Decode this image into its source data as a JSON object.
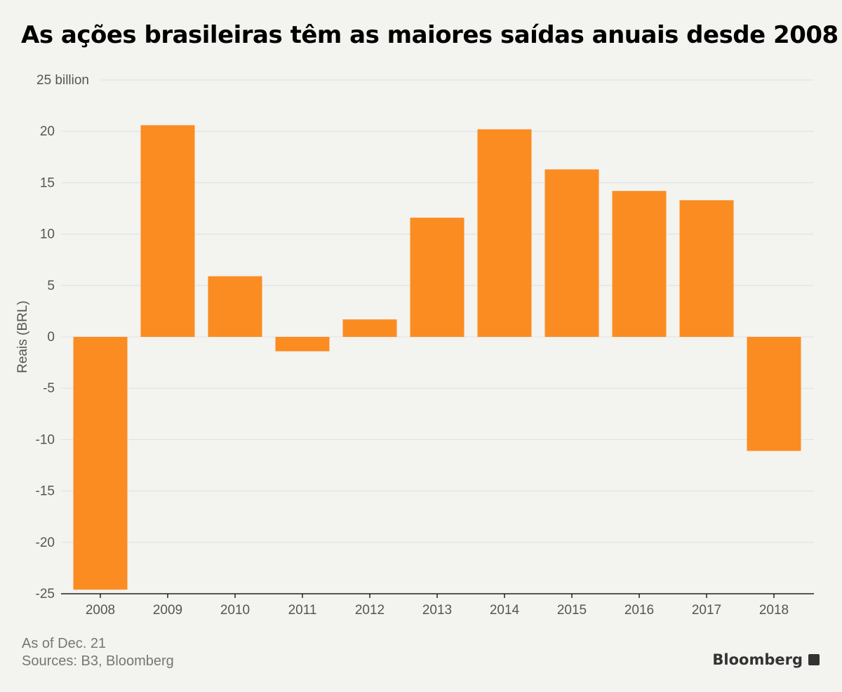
{
  "chart_data": {
    "type": "bar",
    "title": "As ações brasileiras têm as maiores saídas anuais desde 2008",
    "ylabel": "Reais (BRL)",
    "xlabel": "",
    "ylim": [
      -25,
      25
    ],
    "yticks": [
      25,
      20,
      15,
      10,
      5,
      0,
      -5,
      -10,
      -15,
      -20,
      -25
    ],
    "ytick_labels": [
      "25 billion",
      "20",
      "15",
      "10",
      "5",
      "0",
      "-5",
      "-10",
      "-15",
      "-20",
      "-25"
    ],
    "grid": true,
    "categories": [
      "2008",
      "2009",
      "2010",
      "2011",
      "2012",
      "2013",
      "2014",
      "2015",
      "2016",
      "2017",
      "2018"
    ],
    "values": [
      -24.6,
      20.6,
      5.9,
      -1.4,
      1.7,
      11.6,
      20.2,
      16.3,
      14.2,
      13.3,
      -11.1
    ],
    "bar_color": "#fb8c22"
  },
  "footer": {
    "note": "As of Dec. 21",
    "sources": "Sources: B3, Bloomberg",
    "brand": "Bloomberg"
  }
}
